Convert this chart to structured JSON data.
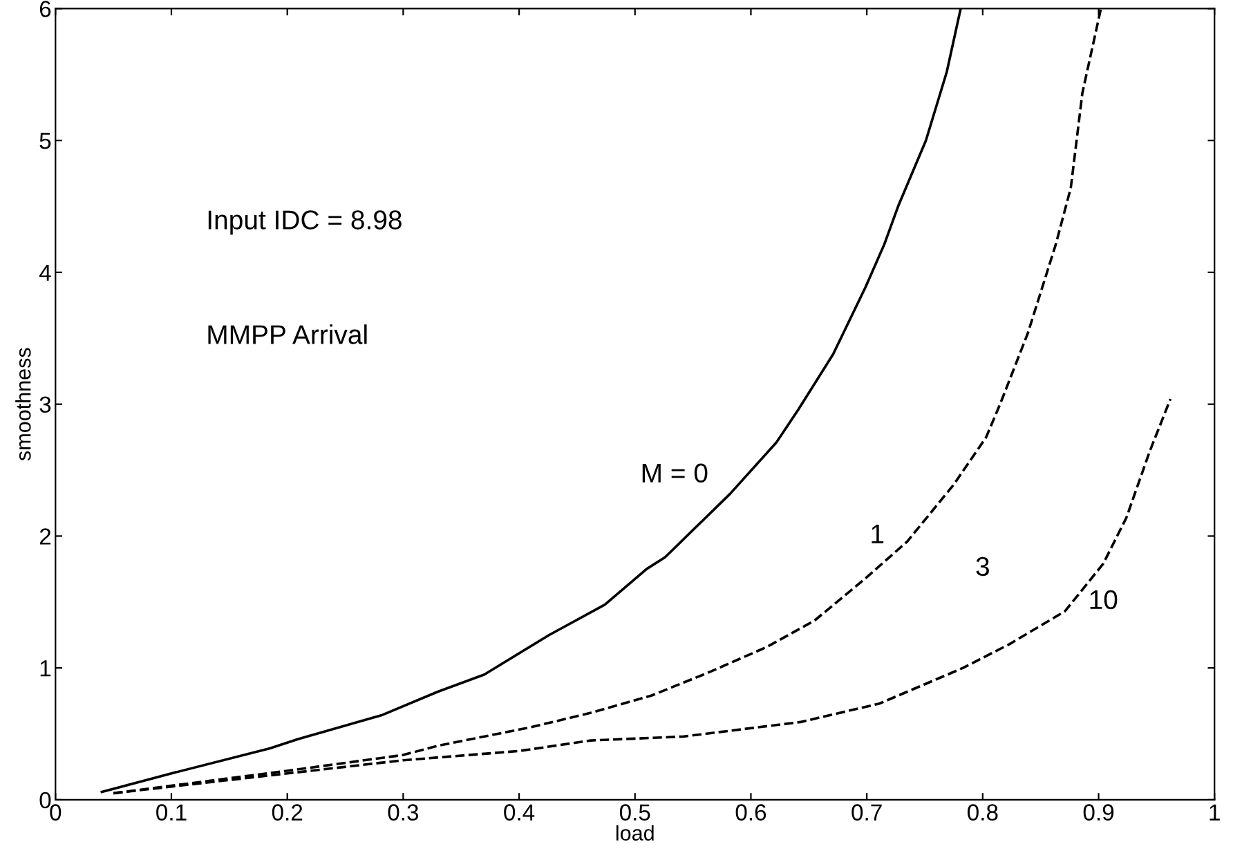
{
  "chart_data": {
    "type": "line",
    "xlabel": "load",
    "ylabel": "smoothness",
    "xlim": [
      0,
      1
    ],
    "ylim": [
      0,
      6
    ],
    "xticks": [
      0,
      0.1,
      0.2,
      0.3,
      0.4,
      0.5,
      0.6,
      0.7,
      0.8,
      0.9,
      1
    ],
    "yticks": [
      0,
      1,
      2,
      3,
      4,
      5,
      6
    ],
    "grid": false,
    "marker": "none",
    "series": [
      {
        "color": "#000000",
        "line_style": "solid",
        "x": [
          0.04,
          0.1,
          0.185,
          0.209,
          0.281,
          0.33,
          0.37,
          0.426,
          0.474,
          0.51,
          0.526,
          0.582,
          0.622,
          0.641,
          0.671,
          0.699,
          0.715,
          0.727,
          0.751,
          0.769,
          0.781
        ],
        "values": [
          0.06,
          0.2,
          0.39,
          0.46,
          0.64,
          0.82,
          0.95,
          1.25,
          1.48,
          1.75,
          1.84,
          2.32,
          2.71,
          2.96,
          3.38,
          3.89,
          4.21,
          4.5,
          5.0,
          5.52,
          6.0
        ]
      },
      {
        "color": "#000000",
        "line_style": "dashed",
        "x": [
          0.05,
          0.2,
          0.3,
          0.33,
          0.41,
          0.462,
          0.514,
          0.562,
          0.614,
          0.655,
          0.699,
          0.735,
          0.775,
          0.803,
          0.815,
          0.839,
          0.863,
          0.876,
          0.886,
          0.902
        ],
        "values": [
          0.05,
          0.22,
          0.34,
          0.41,
          0.55,
          0.66,
          0.79,
          0.96,
          1.16,
          1.36,
          1.68,
          1.96,
          2.39,
          2.75,
          3.0,
          3.54,
          4.21,
          4.64,
          5.36,
          6.0
        ]
      },
      {
        "color": "#000000",
        "line_style": "dashed",
        "x": [
          0.05,
          0.2,
          0.3,
          0.4,
          0.462,
          0.542,
          0.643,
          0.711,
          0.783,
          0.823,
          0.871,
          0.904,
          0.924,
          0.944,
          0.962
        ],
        "values": [
          0.05,
          0.2,
          0.3,
          0.37,
          0.45,
          0.48,
          0.59,
          0.73,
          1.0,
          1.18,
          1.43,
          1.79,
          2.14,
          2.64,
          3.04
        ]
      }
    ],
    "annotations": [
      "Input IDC = 8.98",
      "MMPP Arrival",
      "M = 0",
      "1",
      "3",
      "10"
    ]
  }
}
